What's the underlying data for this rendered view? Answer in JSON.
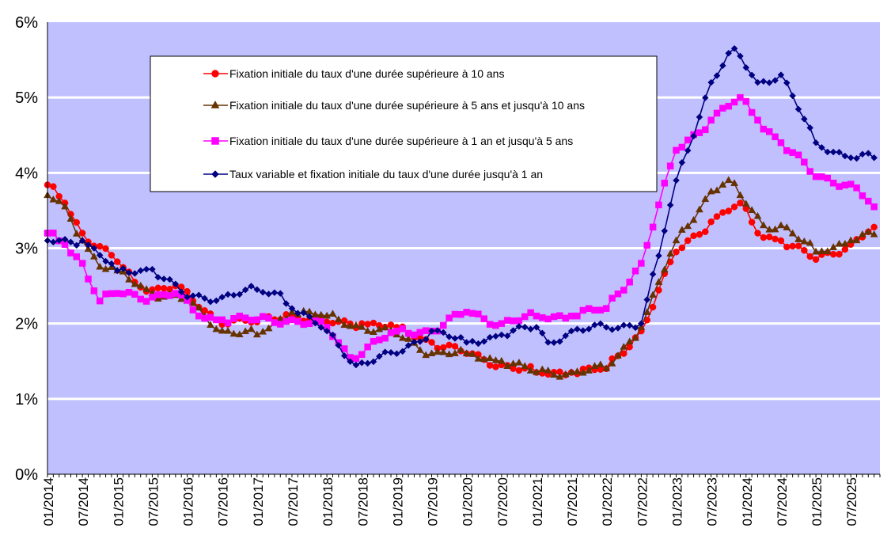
{
  "chart_data": {
    "type": "line",
    "title": "",
    "xlabel": "",
    "ylabel": "",
    "ylim": [
      0,
      6
    ],
    "yticks": [
      "0%",
      "1%",
      "2%",
      "3%",
      "4%",
      "5%",
      "6%"
    ],
    "grid": "horizontal",
    "legend_position": "top-center",
    "plot_background": "#c0c0ff",
    "x_start": "01/2014",
    "x_end": "11/2025",
    "xtick_labels": [
      "01/2014",
      "07/2014",
      "01/2015",
      "07/2015",
      "01/2016",
      "07/2016",
      "01/2017",
      "07/2017",
      "01/2018",
      "07/2018",
      "01/2019",
      "07/2019",
      "01/2020",
      "07/2020",
      "01/2021",
      "07/2021",
      "01/2022",
      "07/2022",
      "01/2023",
      "07/2023",
      "01/2024",
      "07/2024",
      "01/2025",
      "07/2025"
    ],
    "series": [
      {
        "name": "Fixation initiale du taux d'une durée supérieure à 10 ans",
        "color": "#ff0000",
        "marker": "circle",
        "anchors": [
          [
            "01/2014",
            3.84
          ],
          [
            "04/2014",
            3.6
          ],
          [
            "07/2014",
            3.2
          ],
          [
            "01/2015",
            2.82
          ],
          [
            "04/2015",
            2.55
          ],
          [
            "07/2015",
            2.45
          ],
          [
            "11/2015",
            2.5
          ],
          [
            "02/2016",
            2.3
          ],
          [
            "06/2016",
            2.05
          ],
          [
            "01/2017",
            2.02
          ],
          [
            "06/2017",
            2.12
          ],
          [
            "01/2018",
            2.02
          ],
          [
            "07/2018",
            2.0
          ],
          [
            "01/2019",
            1.95
          ],
          [
            "07/2019",
            1.75
          ],
          [
            "01/2020",
            1.6
          ],
          [
            "07/2020",
            1.45
          ],
          [
            "01/2021",
            1.35
          ],
          [
            "07/2021",
            1.35
          ],
          [
            "01/2022",
            1.4
          ],
          [
            "07/2022",
            1.9
          ],
          [
            "01/2023",
            2.95
          ],
          [
            "07/2023",
            3.35
          ],
          [
            "12/2023",
            3.6
          ],
          [
            "03/2024",
            3.2
          ],
          [
            "07/2024",
            3.1
          ],
          [
            "01/2025",
            2.85
          ],
          [
            "07/2025",
            3.05
          ],
          [
            "11/2025",
            3.28
          ]
        ]
      },
      {
        "name": "Fixation initiale du taux d'une durée supérieure à 5 ans et  jusqu'à 10 ans",
        "color": "#663300",
        "marker": "triangle",
        "anchors": [
          [
            "01/2014",
            3.7
          ],
          [
            "04/2014",
            3.55
          ],
          [
            "07/2014",
            3.1
          ],
          [
            "10/2014",
            2.75
          ],
          [
            "01/2015",
            2.7
          ],
          [
            "07/2015",
            2.4
          ],
          [
            "01/2016",
            2.3
          ],
          [
            "07/2016",
            1.9
          ],
          [
            "01/2017",
            1.85
          ],
          [
            "07/2017",
            2.15
          ],
          [
            "01/2018",
            2.1
          ],
          [
            "07/2018",
            1.95
          ],
          [
            "01/2019",
            1.85
          ],
          [
            "07/2019",
            1.6
          ],
          [
            "01/2020",
            1.6
          ],
          [
            "07/2020",
            1.5
          ],
          [
            "01/2021",
            1.35
          ],
          [
            "07/2021",
            1.35
          ],
          [
            "01/2022",
            1.4
          ],
          [
            "07/2022",
            1.95
          ],
          [
            "01/2023",
            3.1
          ],
          [
            "07/2023",
            3.75
          ],
          [
            "10/2023",
            3.9
          ],
          [
            "12/2023",
            3.7
          ],
          [
            "04/2024",
            3.3
          ],
          [
            "07/2024",
            3.3
          ],
          [
            "01/2025",
            2.95
          ],
          [
            "07/2025",
            3.1
          ],
          [
            "11/2025",
            3.18
          ]
        ]
      },
      {
        "name": "Fixation initiale du taux d'une durée supérieure à 1 an et  jusqu'à 5 ans",
        "color": "#ff00ff",
        "marker": "square",
        "anchors": [
          [
            "01/2014",
            3.2
          ],
          [
            "04/2014",
            3.05
          ],
          [
            "07/2014",
            2.8
          ],
          [
            "10/2014",
            2.3
          ],
          [
            "01/2015",
            2.4
          ],
          [
            "07/2015",
            2.35
          ],
          [
            "11/2015",
            2.4
          ],
          [
            "03/2016",
            2.1
          ],
          [
            "07/2016",
            2.05
          ],
          [
            "01/2017",
            2.05
          ],
          [
            "07/2017",
            2.05
          ],
          [
            "01/2018",
            1.95
          ],
          [
            "05/2018",
            1.55
          ],
          [
            "01/2019",
            1.9
          ],
          [
            "07/2019",
            1.9
          ],
          [
            "01/2020",
            2.15
          ],
          [
            "07/2020",
            2.0
          ],
          [
            "01/2021",
            2.1
          ],
          [
            "07/2021",
            2.1
          ],
          [
            "01/2022",
            2.2
          ],
          [
            "07/2022",
            2.8
          ],
          [
            "01/2023",
            4.3
          ],
          [
            "07/2023",
            4.7
          ],
          [
            "12/2023",
            5.0
          ],
          [
            "03/2024",
            4.7
          ],
          [
            "07/2024",
            4.4
          ],
          [
            "01/2025",
            3.95
          ],
          [
            "07/2025",
            3.85
          ],
          [
            "11/2025",
            3.55
          ]
        ]
      },
      {
        "name": "Taux variable et fixation initiale du taux d'une durée jusqu'à 1 an",
        "color": "#000080",
        "marker": "diamond",
        "anchors": [
          [
            "01/2014",
            3.1
          ],
          [
            "07/2014",
            3.1
          ],
          [
            "01/2015",
            2.7
          ],
          [
            "07/2015",
            2.72
          ],
          [
            "01/2016",
            2.35
          ],
          [
            "07/2016",
            2.35
          ],
          [
            "01/2017",
            2.45
          ],
          [
            "05/2017",
            2.4
          ],
          [
            "07/2017",
            2.2
          ],
          [
            "01/2018",
            1.9
          ],
          [
            "06/2018",
            1.45
          ],
          [
            "01/2019",
            1.6
          ],
          [
            "07/2019",
            1.9
          ],
          [
            "01/2020",
            1.75
          ],
          [
            "07/2020",
            1.85
          ],
          [
            "01/2021",
            1.95
          ],
          [
            "03/2021",
            1.75
          ],
          [
            "07/2021",
            1.9
          ],
          [
            "01/2022",
            1.95
          ],
          [
            "07/2022",
            2.0
          ],
          [
            "10/2022",
            2.9
          ],
          [
            "01/2023",
            3.9
          ],
          [
            "07/2023",
            5.2
          ],
          [
            "11/2023",
            5.65
          ],
          [
            "03/2024",
            5.2
          ],
          [
            "07/2024",
            5.3
          ],
          [
            "01/2025",
            4.4
          ],
          [
            "07/2025",
            4.2
          ],
          [
            "11/2025",
            4.2
          ]
        ]
      }
    ]
  }
}
